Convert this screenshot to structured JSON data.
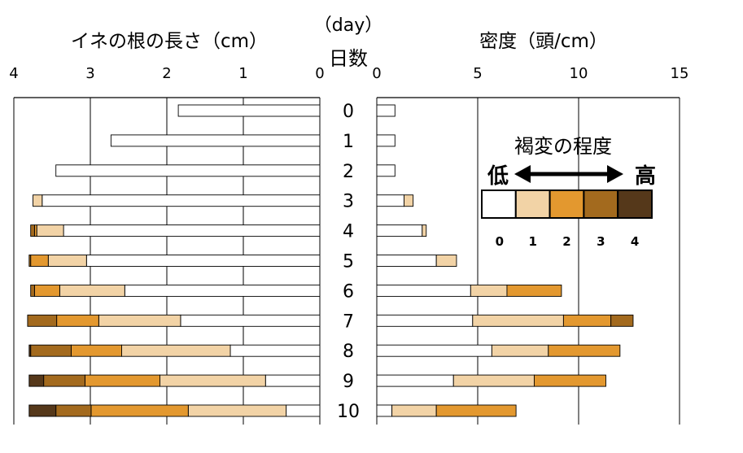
{
  "chart_data": [
    {
      "type": "bar",
      "orientation": "horizontal-reversed",
      "stacked": true,
      "title": "イネの根の長さ（cm）",
      "xlim": [
        4,
        0
      ],
      "xticks": [
        4,
        3,
        2,
        1,
        0
      ],
      "grid": true,
      "categories": [
        "0",
        "1",
        "2",
        "3",
        "4",
        "5",
        "6",
        "7",
        "8",
        "9",
        "10"
      ],
      "stack_note_levels": [
        0,
        1,
        2,
        3,
        4
      ],
      "rows": [
        [
          [
            0,
            1.85
          ]
        ],
        [
          [
            0,
            2.73
          ]
        ],
        [
          [
            0,
            3.45
          ]
        ],
        [
          [
            0,
            3.63
          ],
          [
            1,
            0.12
          ]
        ],
        [
          [
            0,
            3.35
          ],
          [
            1,
            0.35
          ],
          [
            2,
            0.03
          ],
          [
            3,
            0.05
          ]
        ],
        [
          [
            0,
            3.05
          ],
          [
            1,
            0.5
          ],
          [
            2,
            0.23
          ],
          [
            3,
            0.02
          ]
        ],
        [
          [
            0,
            2.55
          ],
          [
            1,
            0.85
          ],
          [
            2,
            0.33
          ],
          [
            3,
            0.05
          ]
        ],
        [
          [
            0,
            1.82
          ],
          [
            1,
            1.07
          ],
          [
            2,
            0.55
          ],
          [
            3,
            0.38
          ]
        ],
        [
          [
            0,
            1.17
          ],
          [
            1,
            1.42
          ],
          [
            2,
            0.66
          ],
          [
            3,
            0.53
          ],
          [
            4,
            0.02
          ]
        ],
        [
          [
            0,
            0.71
          ],
          [
            1,
            1.38
          ],
          [
            2,
            0.98
          ],
          [
            3,
            0.54
          ],
          [
            4,
            0.19
          ]
        ],
        [
          [
            0,
            0.44
          ],
          [
            1,
            1.28
          ],
          [
            2,
            1.27
          ],
          [
            3,
            0.46
          ],
          [
            4,
            0.35
          ]
        ]
      ]
    },
    {
      "type": "bar",
      "orientation": "horizontal",
      "stacked": true,
      "title": "密度（頭/cm）",
      "xlim": [
        0,
        15
      ],
      "xticks": [
        0,
        5,
        10,
        15
      ],
      "grid": true,
      "categories": [
        "0",
        "1",
        "2",
        "3",
        "4",
        "5",
        "6",
        "7",
        "8",
        "9",
        "10"
      ],
      "rows": [
        [
          [
            0,
            0.9
          ]
        ],
        [
          [
            0,
            0.9
          ]
        ],
        [
          [
            0,
            0.9
          ]
        ],
        [
          [
            0,
            1.35
          ],
          [
            1,
            0.45
          ]
        ],
        [
          [
            0,
            2.25
          ],
          [
            1,
            0.2
          ]
        ],
        [
          [
            0,
            2.95
          ],
          [
            1,
            1.0
          ]
        ],
        [
          [
            0,
            4.65
          ],
          [
            1,
            1.8
          ],
          [
            2,
            2.7
          ]
        ],
        [
          [
            0,
            4.75
          ],
          [
            1,
            4.5
          ],
          [
            2,
            2.35
          ],
          [
            3,
            1.1
          ]
        ],
        [
          [
            0,
            5.7
          ],
          [
            1,
            2.8
          ],
          [
            2,
            3.55
          ]
        ],
        [
          [
            0,
            3.8
          ],
          [
            1,
            4.0
          ],
          [
            2,
            3.55
          ]
        ],
        [
          [
            0,
            0.75
          ],
          [
            1,
            2.2
          ],
          [
            2,
            3.95
          ]
        ]
      ]
    }
  ],
  "center": {
    "unit_label": "（day）",
    "axis_label": "日数"
  },
  "legend": {
    "title": "褐変の程度",
    "low_label": "低",
    "high_label": "高",
    "levels": [
      "0",
      "1",
      "2",
      "3",
      "4"
    ]
  },
  "colors": [
    "#ffffff",
    "#f2d3a6",
    "#e3982f",
    "#a36a1e",
    "#55381a"
  ]
}
